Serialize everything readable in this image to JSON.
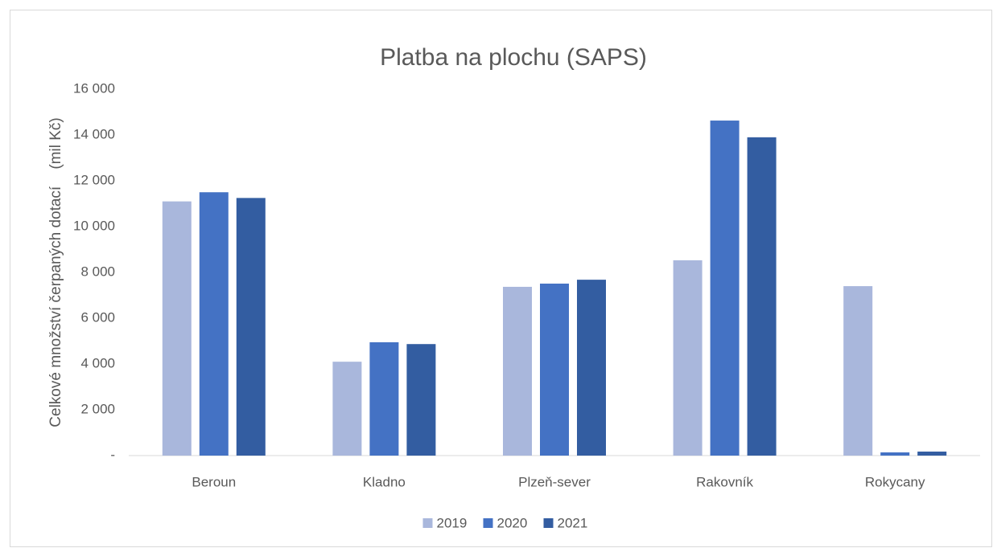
{
  "chart_data": {
    "type": "bar",
    "title": "Platba na plochu (SAPS)",
    "y_label": "Celkové množství čerpaných dotací    (mil Kč)",
    "categories": [
      "Beroun",
      "Kladno",
      "Plzeň-sever",
      "Rakovník",
      "Rokycany"
    ],
    "series": [
      {
        "name": "2019",
        "color": "#a9b7dc",
        "values": [
          11100,
          4100,
          7370,
          8530,
          7400
        ]
      },
      {
        "name": "2020",
        "color": "#4472c4",
        "values": [
          11500,
          4950,
          7510,
          14630,
          140
        ]
      },
      {
        "name": "2021",
        "color": "#335da1",
        "values": [
          11250,
          4870,
          7680,
          13900,
          175
        ]
      }
    ],
    "ylim": [
      0,
      16000
    ],
    "yticks": [
      {
        "value": 0,
        "label": "-"
      },
      {
        "value": 2000,
        "label": "2 000"
      },
      {
        "value": 4000,
        "label": "4 000"
      },
      {
        "value": 6000,
        "label": "6 000"
      },
      {
        "value": 8000,
        "label": "8 000"
      },
      {
        "value": 10000,
        "label": "10 000"
      },
      {
        "value": 12000,
        "label": "12 000"
      },
      {
        "value": 14000,
        "label": "14 000"
      },
      {
        "value": 16000,
        "label": "16 000"
      }
    ],
    "grid": false,
    "legend": "bottom"
  }
}
